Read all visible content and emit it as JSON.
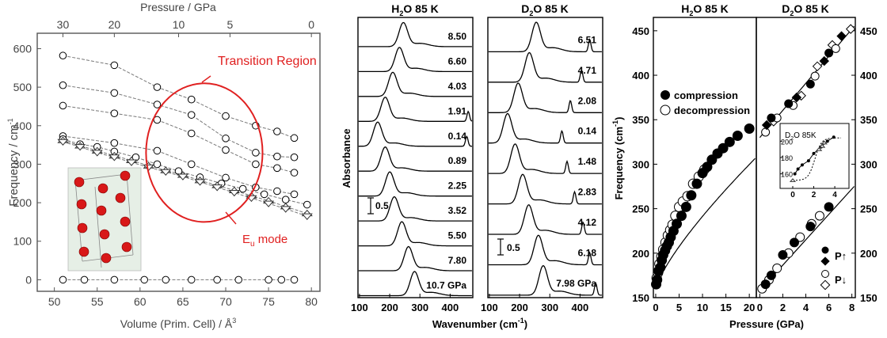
{
  "colors": {
    "panel_a_axis": "#555555",
    "panel_a_text": "#444444",
    "transition_circle": "#e02020",
    "mode_label": "#e02020",
    "black": "#000000",
    "crystal_background": "#e6efe6",
    "atom_red": "#d81818"
  },
  "chart_data": [
    {
      "type": "scatter",
      "xlabel": "Volume (Prim. Cell) / Å",
      "xlabel_superscript": "3",
      "ylabel": "Frequency / cm",
      "ylabel_superscript": "-1",
      "top_axis_label": "Pressure / GPa",
      "xlim": [
        48,
        81
      ],
      "ylim": [
        -30,
        640
      ],
      "xticks": [
        50,
        55,
        60,
        65,
        70,
        75,
        80
      ],
      "yticks": [
        0,
        100,
        200,
        300,
        400,
        500,
        600
      ],
      "top_ticks": [
        {
          "label": "30",
          "volume": 51.0
        },
        {
          "label": "20",
          "volume": 57.0
        },
        {
          "label": "10",
          "volume": 64.5
        },
        {
          "label": "5",
          "volume": 70.5
        },
        {
          "label": "0",
          "volume": 80.0
        }
      ],
      "annotations": {
        "transition": "Transition Region",
        "mode_main": "E",
        "mode_sub": "u",
        "mode_tail": " mode"
      },
      "transition_region": {
        "center_volume": 67.5,
        "center_frequency": 330,
        "volume_radius": 6.8,
        "frequency_radius": 180
      },
      "series": [
        {
          "marker": "circle",
          "x": [
            51,
            57,
            62,
            66,
            70,
            73.5,
            76,
            78
          ],
          "y": [
            582,
            557,
            500,
            468,
            425,
            400,
            385,
            368
          ]
        },
        {
          "marker": "circle",
          "x": [
            51,
            57,
            62,
            66,
            70,
            73.5,
            76,
            78
          ],
          "y": [
            505,
            485,
            455,
            428,
            367,
            330,
            320,
            318
          ]
        },
        {
          "marker": "circle",
          "x": [
            51,
            57,
            62,
            66,
            70,
            73.5,
            76,
            78
          ],
          "y": [
            452,
            432,
            415,
            380,
            337,
            300,
            290,
            278
          ]
        },
        {
          "marker": "circle",
          "x": [
            51,
            57,
            62,
            66,
            70,
            73.5,
            76,
            78
          ],
          "y": [
            373,
            355,
            335,
            300,
            265,
            240,
            230,
            222
          ]
        },
        {
          "marker": "circle",
          "x": [
            51,
            53,
            55,
            57,
            59.5,
            62,
            64.5,
            67,
            69.5,
            72,
            74.5,
            77,
            79.5
          ],
          "y": [
            365,
            352,
            345,
            333,
            318,
            300,
            282,
            266,
            250,
            236,
            222,
            208,
            195
          ]
        },
        {
          "marker": "triangle-up",
          "x": [
            51,
            53,
            55,
            57,
            59,
            61,
            63,
            65,
            67,
            69,
            71,
            73,
            75,
            77,
            79.5
          ],
          "y": [
            362,
            348,
            335,
            322,
            310,
            296,
            284,
            272,
            258,
            245,
            232,
            218,
            205,
            190,
            172
          ]
        },
        {
          "marker": "triangle-down",
          "x": [
            51,
            53,
            55,
            57,
            59,
            61,
            63,
            65,
            67,
            69,
            71,
            73,
            75,
            77,
            79.5
          ],
          "y": [
            358,
            345,
            330,
            318,
            305,
            292,
            280,
            268,
            254,
            240,
            226,
            212,
            198,
            184,
            165
          ]
        },
        {
          "marker": "circle",
          "x": [
            51,
            53.5,
            57,
            60.5,
            63,
            66,
            69,
            71.5,
            75,
            76.5,
            78
          ],
          "y": [
            0,
            0,
            0,
            0,
            0,
            0,
            0,
            0,
            0,
            0,
            0
          ]
        }
      ]
    },
    {
      "type": "line",
      "title_left": "H",
      "title_sub": "2",
      "title_right": "O 85 K",
      "ylabel": "Absorbance",
      "xlim": [
        95,
        475
      ],
      "xticks": [
        100,
        200,
        300,
        400
      ],
      "scalebar_label": "0.5",
      "spectra": [
        {
          "label": "8.50",
          "peak": 245
        },
        {
          "label": "6.60",
          "peak": 232
        },
        {
          "label": "4.03",
          "peak": 210
        },
        {
          "label": "1.91",
          "peak": 185,
          "peak2": 460
        },
        {
          "label": "0.14",
          "peak": 160,
          "peak2": 455
        },
        {
          "label": "0.89",
          "peak": 185
        },
        {
          "label": "2.25",
          "peak": 200
        },
        {
          "label": "3.52",
          "peak": 215
        },
        {
          "label": "5.50",
          "peak": 240
        },
        {
          "label": "7.80",
          "peak": 262
        },
        {
          "label": "10.7 GPa",
          "peak": 282
        }
      ]
    },
    {
      "type": "line",
      "title_left": "D",
      "title_sub": "2",
      "title_right": "O 85 K",
      "xlabel": "Wavenumber (cm",
      "xlabel_superscript": "-1",
      "xlabel_tail": ")",
      "xlim": [
        95,
        475
      ],
      "xticks": [
        100,
        200,
        300,
        400
      ],
      "scalebar_label": "0.5",
      "spectra": [
        {
          "label": "6.51",
          "peak": 255,
          "peak2": 432
        },
        {
          "label": "4.71",
          "peak": 232,
          "peak2": 405
        },
        {
          "label": "2.08",
          "peak": 195,
          "peak2": 368
        },
        {
          "label": "0.14",
          "peak": 160,
          "peak2": 340
        },
        {
          "label": "1.48",
          "peak": 185,
          "peak2": 357
        },
        {
          "label": "2.83",
          "peak": 210,
          "peak2": 382
        },
        {
          "label": "4.12",
          "peak": 230,
          "peak2": 410
        },
        {
          "label": "6.18",
          "peak": 262,
          "peak2": 432
        },
        {
          "label": "7.98 GPa",
          "peak": 278,
          "peak2": 452
        }
      ]
    },
    {
      "type": "scatter",
      "title_left": "H",
      "title_sub": "2",
      "title_right": "O 85 K",
      "ylabel": "Frequency (cm",
      "ylabel_superscript": "-1",
      "ylabel_tail": ")",
      "xlim": [
        -0.5,
        21.5
      ],
      "ylim": [
        150,
        465
      ],
      "xticks": [
        0,
        5,
        10,
        15,
        20
      ],
      "yticks": [
        150,
        200,
        250,
        300,
        350,
        400,
        450
      ],
      "legend": {
        "compression": "compression",
        "decompression": "decompression"
      },
      "compression": {
        "x": [
          0.1,
          0.3,
          0.6,
          1.0,
          1.3,
          1.6,
          2.0,
          2.4,
          2.8,
          3.2,
          3.8,
          4.5,
          5.5,
          6.5,
          7.6,
          8.8,
          10.0,
          11.0,
          12.0,
          13.2,
          14.4,
          15.8,
          17.5,
          20.0
        ],
        "y": [
          165,
          170,
          180,
          184,
          192,
          198,
          203,
          208,
          212,
          218,
          225,
          233,
          242,
          252,
          265,
          278,
          290,
          297,
          305,
          312,
          318,
          325,
          332,
          340
        ]
      },
      "decompression": {
        "x": [
          0.2,
          0.5,
          0.8,
          1.2,
          1.6,
          2.1,
          2.6,
          3.1,
          3.6,
          4.2,
          5.0,
          5.8,
          6.8,
          8.0,
          9.2,
          10.4
        ],
        "y": [
          172,
          178,
          188,
          196,
          204,
          212,
          220,
          226,
          232,
          242,
          252,
          258,
          264,
          278,
          286,
          294
        ]
      },
      "fit": {
        "type": "power",
        "a": 160,
        "b": 13.5,
        "c": 0.78
      }
    },
    {
      "type": "scatter",
      "title_left": "D",
      "title_sub": "2",
      "title_right": "O 85 K",
      "xlabel": "Pressure (GPa)",
      "xlim": [
        -0.3,
        8.3
      ],
      "ylim": [
        150,
        465
      ],
      "xticks": [
        0,
        2,
        4,
        6,
        8
      ],
      "yticks": [
        150,
        200,
        250,
        300,
        350,
        400,
        450
      ],
      "legend": {
        "p_up": "P↑",
        "p_down": "P↓"
      },
      "upper_compression_circles": {
        "x": [
          1.0,
          2.5,
          4.4,
          6.0
        ],
        "y": [
          352,
          368,
          390,
          425
        ]
      },
      "upper_compression_diamonds": {
        "x": [
          0.6,
          3.2,
          5.6,
          7.1
        ],
        "y": [
          344,
          375,
          416,
          444
        ]
      },
      "upper_decompression_circles": {
        "x": [
          0.5,
          1.5,
          2.9,
          4.8,
          6.6
        ],
        "y": [
          336,
          352,
          366,
          399,
          430
        ]
      },
      "upper_decompression_diamonds": {
        "x": [
          1.2,
          3.6,
          5.0,
          6.3,
          7.9
        ],
        "y": [
          348,
          377,
          410,
          434,
          452
        ]
      },
      "lower_compression": {
        "x": [
          0.5,
          1.0,
          2.0,
          3.0,
          4.4,
          6.0
        ],
        "y": [
          165,
          175,
          198,
          212,
          230,
          252
        ]
      },
      "lower_decompression": {
        "x": [
          0.2,
          0.8,
          1.5,
          2.5,
          3.5,
          4.5,
          5.2
        ],
        "y": [
          160,
          170,
          183,
          200,
          218,
          233,
          242
        ]
      },
      "upper_fit": {
        "x0": 0,
        "y0": 330,
        "x1": 8.2,
        "y1": 455
      },
      "lower_fit": {
        "x0": 0,
        "y0": 158,
        "x1": 8.2,
        "y1": 275
      },
      "inset": {
        "title_left": "D",
        "title_sub": "2",
        "title_right": "O  85K",
        "xlim": [
          -0.3,
          5.2
        ],
        "ylim": [
          150,
          212
        ],
        "xticks": [
          0,
          2,
          4
        ],
        "yticks": [
          160,
          180,
          200
        ],
        "points": {
          "x": [
            0.2,
            0.5,
            0.9,
            1.5,
            2.0,
            2.7,
            3.3,
            3.9
          ],
          "y": [
            160,
            166,
            171,
            176,
            185,
            193,
            200,
            205
          ]
        },
        "triangles": {
          "x": [
            0.0,
            2.5,
            2.8,
            3.0
          ],
          "y": [
            152,
            190,
            194,
            198
          ]
        }
      }
    }
  ]
}
